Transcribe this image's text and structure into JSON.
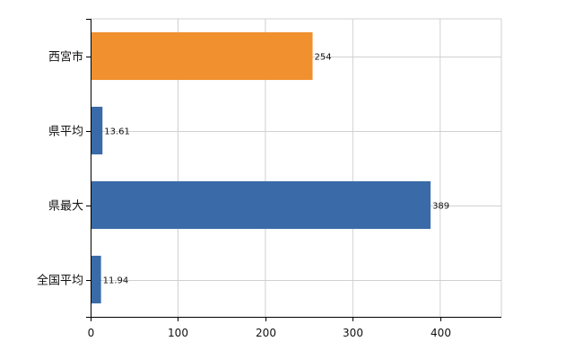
{
  "chart_data": {
    "type": "bar",
    "orientation": "horizontal",
    "categories": [
      "西宮市",
      "県平均",
      "県最大",
      "全国平均"
    ],
    "values": [
      254,
      13.61,
      389,
      11.94
    ],
    "value_labels": [
      "254",
      "13.61",
      "389",
      "11.94"
    ],
    "xlim": [
      0,
      470
    ],
    "x_ticks": [
      0,
      100,
      200,
      300,
      400
    ],
    "x_tick_labels": [
      "0",
      "100",
      "200",
      "300",
      "400"
    ],
    "grid": true,
    "legend": "none",
    "title": "",
    "xlabel": "",
    "ylabel": "",
    "colors": {
      "highlight": "#F0902E",
      "default": "#3A6BA8",
      "grid": "#D0D0D0",
      "axis": "#000000"
    },
    "highlight_index": 0
  }
}
